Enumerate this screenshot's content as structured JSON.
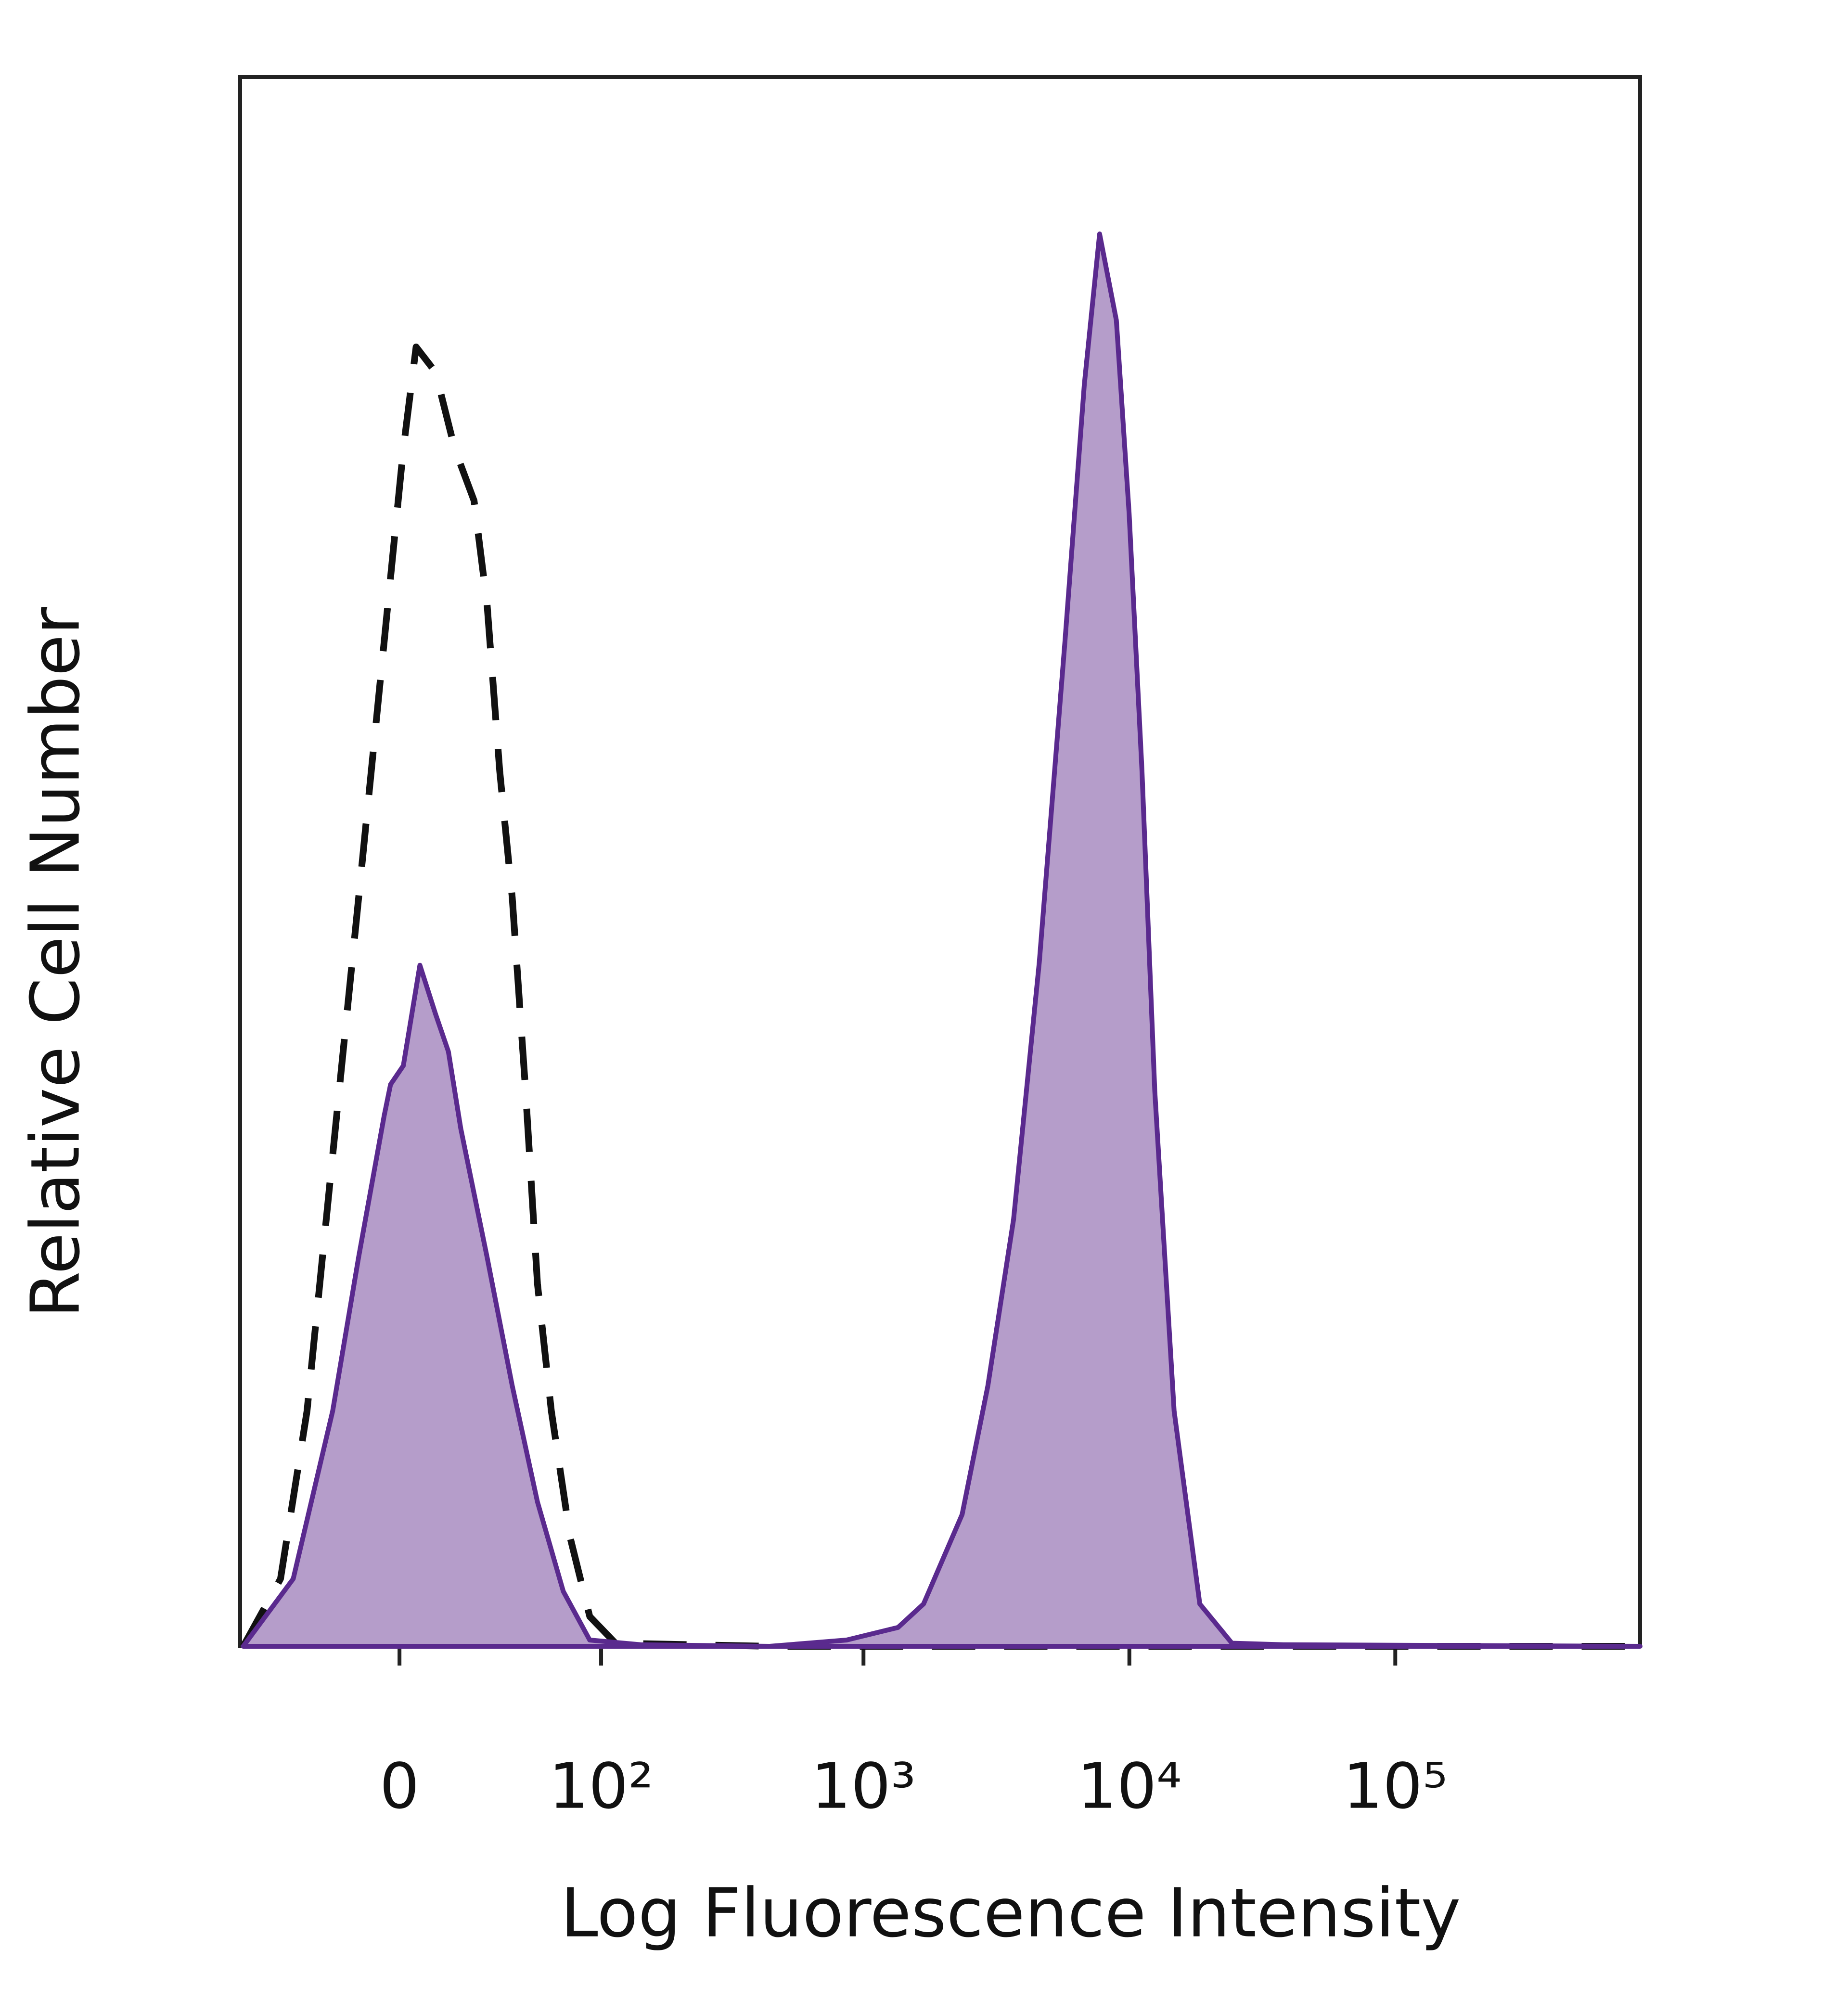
{
  "chart_data": {
    "type": "area",
    "xlabel": "Log Fluorescence Intensity",
    "ylabel": "Relative Cell Number",
    "xscale": "asinh",
    "xscale_cofactor": 36,
    "xlim": [
      -67,
      833000
    ],
    "ylim": [
      0,
      100
    ],
    "xticks": [
      0,
      {
        "value": 100,
        "label": "10²"
      },
      {
        "value": 1000,
        "label": "10³"
      },
      {
        "value": 10000,
        "label": "10⁴"
      },
      {
        "value": 100000,
        "label": "10⁵"
      }
    ],
    "series": [
      {
        "color": "#111111",
        "dashed": true,
        "x": [
          -65,
          -44,
          -32,
          -22,
          -13,
          -4.8,
          1.2,
          5.2,
          11.4,
          17.9,
          24.9,
          30,
          35.3,
          41,
          47.6,
          54,
          62.2,
          74.9,
          90,
          114,
          443,
          833000
        ],
        "values": [
          0,
          4.3,
          15,
          31.3,
          47.7,
          64,
          76.3,
          82.8,
          81.2,
          76.3,
          73,
          66.4,
          55.8,
          47.7,
          35.4,
          23.1,
          15,
          6.9,
          1.9,
          0.2,
          0,
          0
        ]
      },
      {
        "color": "#5a2a8e",
        "fill": "#b59dca",
        "dashed": false,
        "x": [
          -65,
          -38,
          -22,
          -13,
          -4.8,
          -2.8,
          1.2,
          6.4,
          11.4,
          15.7,
          20,
          30,
          41,
          54,
          70,
          90,
          143,
          443,
          864,
          1348,
          1683,
          2350,
          2937,
          3668,
          4585,
          5724,
          6770,
          7730,
          8935,
          9980,
          11150,
          12460,
          14730,
          18400,
          24300,
          37900,
          833000
        ],
        "values": [
          0,
          4.3,
          15,
          24.8,
          33.8,
          35.8,
          37,
          43.4,
          40.3,
          37.9,
          33,
          24.8,
          16.6,
          9.2,
          3.5,
          0.4,
          0.1,
          0,
          0.4,
          1.2,
          2.7,
          8.4,
          16.6,
          27.2,
          43.6,
          64,
          80.4,
          90,
          84.5,
          72.2,
          55.8,
          35.4,
          15,
          2.7,
          0.2,
          0.1,
          0
        ]
      }
    ]
  }
}
